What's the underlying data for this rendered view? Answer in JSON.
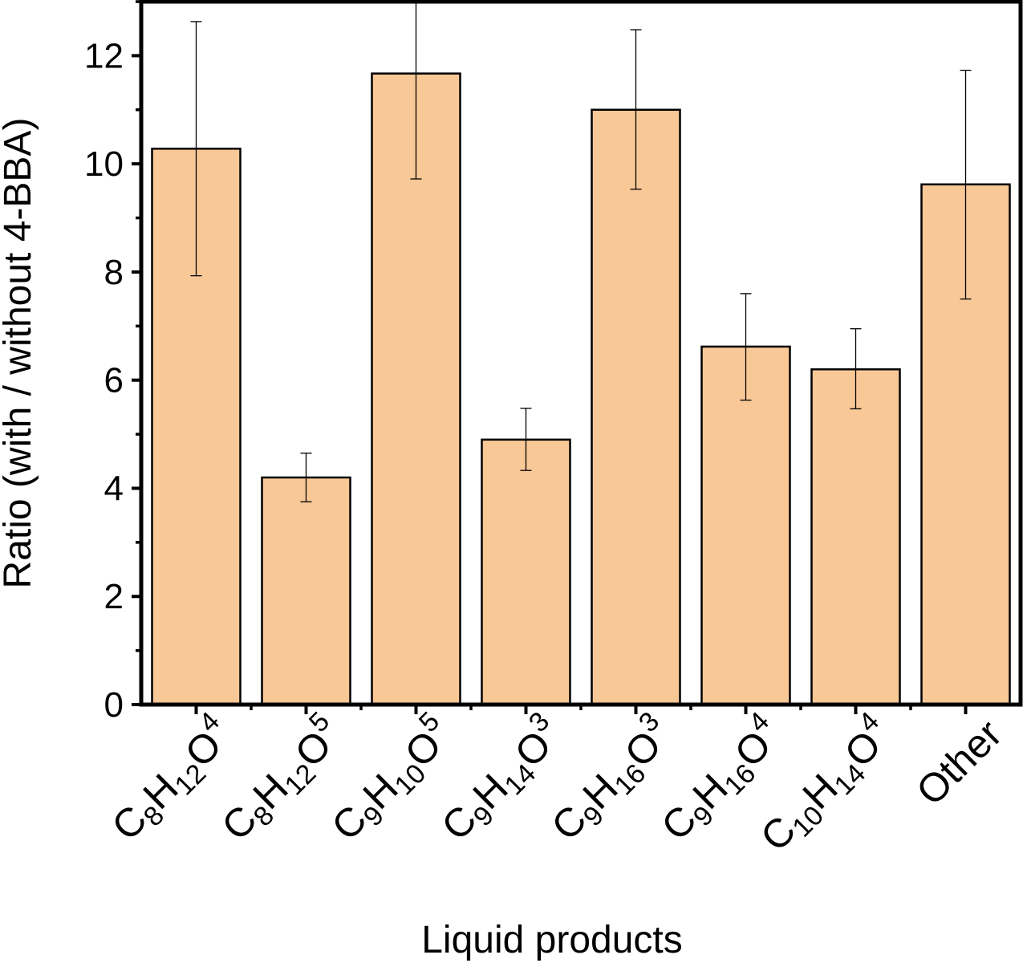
{
  "chart_data": {
    "type": "bar",
    "xlabel": "Liquid products",
    "ylabel": "Ratio (with / without 4-BBA)",
    "ylim": [
      0,
      13
    ],
    "yticks": [
      0,
      2,
      4,
      6,
      8,
      10,
      12
    ],
    "grid": false,
    "legend": "none",
    "bar_color": "#f9c897",
    "edge_color": "#000000",
    "categories": [
      "C8H12O4",
      "C8H12O5",
      "C9H10O5",
      "C9H14O3",
      "C9H16O3",
      "C9H16O4",
      "C10H14O4",
      "Other"
    ],
    "category_parts": [
      [
        [
          "C",
          "main"
        ],
        [
          "8",
          "sub"
        ],
        [
          "H",
          "main"
        ],
        [
          "12",
          "sub"
        ],
        [
          "O",
          "main"
        ],
        [
          "4",
          "sup"
        ]
      ],
      [
        [
          "C",
          "main"
        ],
        [
          "8",
          "sub"
        ],
        [
          "H",
          "main"
        ],
        [
          "12",
          "sub"
        ],
        [
          "O",
          "main"
        ],
        [
          "5",
          "sup"
        ]
      ],
      [
        [
          "C",
          "main"
        ],
        [
          "9",
          "sub"
        ],
        [
          "H",
          "main"
        ],
        [
          "10",
          "sub"
        ],
        [
          "O",
          "main"
        ],
        [
          "5",
          "sup"
        ]
      ],
      [
        [
          "C",
          "main"
        ],
        [
          "9",
          "sub"
        ],
        [
          "H",
          "main"
        ],
        [
          "14",
          "sub"
        ],
        [
          "O",
          "main"
        ],
        [
          "3",
          "sup"
        ]
      ],
      [
        [
          "C",
          "main"
        ],
        [
          "9",
          "sub"
        ],
        [
          "H",
          "main"
        ],
        [
          "16",
          "sub"
        ],
        [
          "O",
          "main"
        ],
        [
          "3",
          "sup"
        ]
      ],
      [
        [
          "C",
          "main"
        ],
        [
          "9",
          "sub"
        ],
        [
          "H",
          "main"
        ],
        [
          "16",
          "sub"
        ],
        [
          "O",
          "main"
        ],
        [
          "4",
          "sup"
        ]
      ],
      [
        [
          "C",
          "main"
        ],
        [
          "10",
          "sub"
        ],
        [
          "H",
          "main"
        ],
        [
          "14",
          "sub"
        ],
        [
          "O",
          "main"
        ],
        [
          "4",
          "sup"
        ]
      ],
      [
        [
          "Other",
          "main"
        ]
      ]
    ],
    "values": [
      10.28,
      4.2,
      11.67,
      4.9,
      11.0,
      6.62,
      6.2,
      9.62
    ],
    "error_low": [
      7.93,
      3.75,
      9.72,
      4.33,
      9.53,
      5.63,
      5.47,
      7.5
    ],
    "error_high": [
      12.63,
      4.65,
      13.0,
      5.48,
      12.48,
      7.6,
      6.95,
      11.73
    ]
  }
}
